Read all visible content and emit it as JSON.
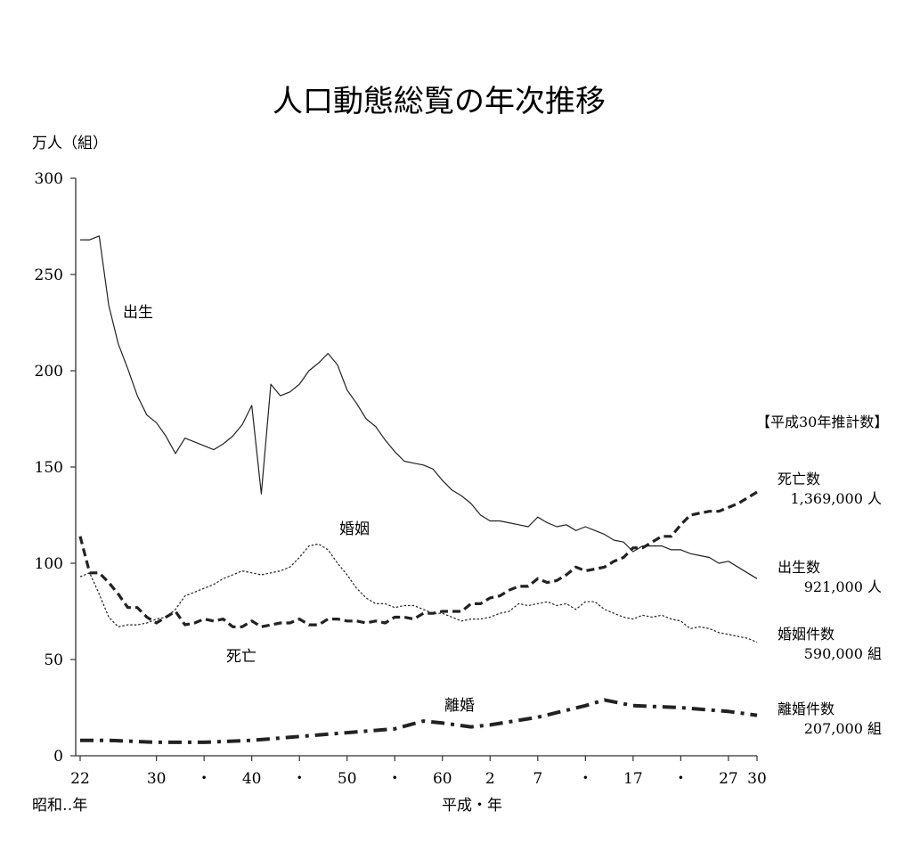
{
  "chart_data": {
    "type": "line",
    "title": "人口動態総覧の年次推移",
    "ylabel": "万人（組）",
    "ylim": [
      0,
      300
    ],
    "yticks": [
      0,
      50,
      100,
      150,
      200,
      250,
      300
    ],
    "grid": false,
    "x_range": [
      1947,
      2018
    ],
    "xticks": [
      {
        "x": 1947,
        "label": "22"
      },
      {
        "x": 1955,
        "label": "30"
      },
      {
        "x": 1960,
        "label": "・"
      },
      {
        "x": 1965,
        "label": "40"
      },
      {
        "x": 1970,
        "label": "・"
      },
      {
        "x": 1975,
        "label": "50"
      },
      {
        "x": 1980,
        "label": "・"
      },
      {
        "x": 1985,
        "label": "60"
      },
      {
        "x": 1990,
        "label": "2"
      },
      {
        "x": 1995,
        "label": "7"
      },
      {
        "x": 2000,
        "label": "・"
      },
      {
        "x": 2005,
        "label": "17"
      },
      {
        "x": 2010,
        "label": "・"
      },
      {
        "x": 2015,
        "label": "27"
      },
      {
        "x": 2018,
        "label": "30"
      }
    ],
    "era_labels": {
      "showa": "昭和‥年",
      "heisei": "平成・年"
    },
    "legend_header": "【平成30年推計数】",
    "series": [
      {
        "name": "出生",
        "style": "solid",
        "color": "#222222",
        "x": [
          1947,
          1948,
          1949,
          1950,
          1951,
          1952,
          1953,
          1954,
          1955,
          1956,
          1957,
          1958,
          1959,
          1960,
          1961,
          1962,
          1963,
          1964,
          1965,
          1966,
          1967,
          1968,
          1969,
          1970,
          1971,
          1972,
          1973,
          1974,
          1975,
          1976,
          1977,
          1978,
          1979,
          1980,
          1981,
          1982,
          1983,
          1984,
          1985,
          1986,
          1987,
          1988,
          1989,
          1990,
          1991,
          1992,
          1993,
          1994,
          1995,
          1996,
          1997,
          1998,
          1999,
          2000,
          2001,
          2002,
          2003,
          2004,
          2005,
          2006,
          2007,
          2008,
          2009,
          2010,
          2011,
          2012,
          2013,
          2014,
          2015,
          2016,
          2017,
          2018
        ],
        "values": [
          268,
          268,
          270,
          234,
          214,
          201,
          187,
          177,
          173,
          166,
          157,
          165,
          163,
          161,
          159,
          162,
          166,
          172,
          182,
          136,
          193,
          187,
          189,
          193,
          200,
          204,
          209,
          203,
          190,
          183,
          175,
          171,
          164,
          158,
          153,
          152,
          151,
          149,
          143,
          138,
          135,
          131,
          125,
          122,
          122,
          121,
          120,
          119,
          124,
          121,
          119,
          120,
          117,
          119,
          117,
          115,
          112,
          111,
          106,
          109,
          109,
          109,
          107,
          107,
          105,
          104,
          103,
          100,
          101,
          98,
          95,
          92
        ]
      },
      {
        "name": "死亡",
        "style": "dashed",
        "color": "#222222",
        "x": [
          1947,
          1948,
          1949,
          1950,
          1951,
          1952,
          1953,
          1954,
          1955,
          1956,
          1957,
          1958,
          1959,
          1960,
          1961,
          1962,
          1963,
          1964,
          1965,
          1966,
          1967,
          1968,
          1969,
          1970,
          1971,
          1972,
          1973,
          1974,
          1975,
          1976,
          1977,
          1978,
          1979,
          1980,
          1981,
          1982,
          1983,
          1984,
          1985,
          1986,
          1987,
          1988,
          1989,
          1990,
          1991,
          1992,
          1993,
          1994,
          1995,
          1996,
          1997,
          1998,
          1999,
          2000,
          2001,
          2002,
          2003,
          2004,
          2005,
          2006,
          2007,
          2008,
          2009,
          2010,
          2011,
          2012,
          2013,
          2014,
          2015,
          2016,
          2017,
          2018
        ],
        "values": [
          114,
          95,
          95,
          90,
          84,
          77,
          77,
          72,
          69,
          72,
          75,
          68,
          69,
          71,
          70,
          71,
          67,
          67,
          70,
          67,
          68,
          69,
          69,
          71,
          68,
          68,
          71,
          71,
          70,
          70,
          69,
          70,
          69,
          72,
          72,
          71,
          74,
          74,
          75,
          75,
          75,
          79,
          79,
          82,
          83,
          86,
          88,
          88,
          92,
          90,
          91,
          94,
          98,
          96,
          97,
          98,
          101,
          103,
          108,
          108,
          111,
          114,
          114,
          120,
          125,
          126,
          127,
          127,
          129,
          131,
          134,
          137
        ]
      },
      {
        "name": "婚姻",
        "style": "dotted",
        "color": "#222222",
        "x": [
          1947,
          1948,
          1949,
          1950,
          1951,
          1952,
          1953,
          1954,
          1955,
          1956,
          1957,
          1958,
          1959,
          1960,
          1961,
          1962,
          1963,
          1964,
          1965,
          1966,
          1967,
          1968,
          1969,
          1970,
          1971,
          1972,
          1973,
          1974,
          1975,
          1976,
          1977,
          1978,
          1979,
          1980,
          1981,
          1982,
          1983,
          1984,
          1985,
          1986,
          1987,
          1988,
          1989,
          1990,
          1991,
          1992,
          1993,
          1994,
          1995,
          1996,
          1997,
          1998,
          1999,
          2000,
          2001,
          2002,
          2003,
          2004,
          2005,
          2006,
          2007,
          2008,
          2009,
          2010,
          2011,
          2012,
          2013,
          2014,
          2015,
          2016,
          2017,
          2018
        ],
        "values": [
          93,
          95,
          84,
          72,
          67,
          68,
          68,
          69,
          71,
          72,
          76,
          83,
          85,
          87,
          89,
          92,
          94,
          96,
          95,
          94,
          95,
          96,
          98,
          103,
          109,
          110,
          107,
          100,
          94,
          87,
          82,
          79,
          79,
          77,
          78,
          78,
          76,
          74,
          74,
          72,
          70,
          71,
          71,
          72,
          74,
          75,
          79,
          78,
          79,
          80,
          78,
          79,
          76,
          80,
          80,
          76,
          74,
          72,
          71,
          73,
          72,
          73,
          71,
          70,
          66,
          67,
          66,
          64,
          63,
          62,
          61,
          59
        ]
      },
      {
        "name": "離婚",
        "style": "dashdot",
        "color": "#222222",
        "x": [
          1947,
          1950,
          1955,
          1960,
          1965,
          1970,
          1975,
          1980,
          1983,
          1985,
          1988,
          1990,
          1995,
          2000,
          2002,
          2005,
          2010,
          2015,
          2018
        ],
        "values": [
          8,
          8,
          7,
          7,
          8,
          10,
          12,
          14,
          18,
          17,
          15,
          16,
          20,
          26,
          29,
          26,
          25,
          23,
          21
        ]
      }
    ],
    "annotations": [
      {
        "series": "出生",
        "text": "出生"
      },
      {
        "series": "婚姻",
        "text": "婚姻"
      },
      {
        "series": "死亡",
        "text": "死亡"
      },
      {
        "series": "離婚",
        "text": "離婚"
      }
    ],
    "legend": [
      {
        "name": "死亡数",
        "value": "1,369,000 人"
      },
      {
        "name": "出生数",
        "value": "921,000 人"
      },
      {
        "name": "婚姻件数",
        "value": "590,000 組"
      },
      {
        "name": "離婚件数",
        "value": "207,000 組"
      }
    ]
  }
}
